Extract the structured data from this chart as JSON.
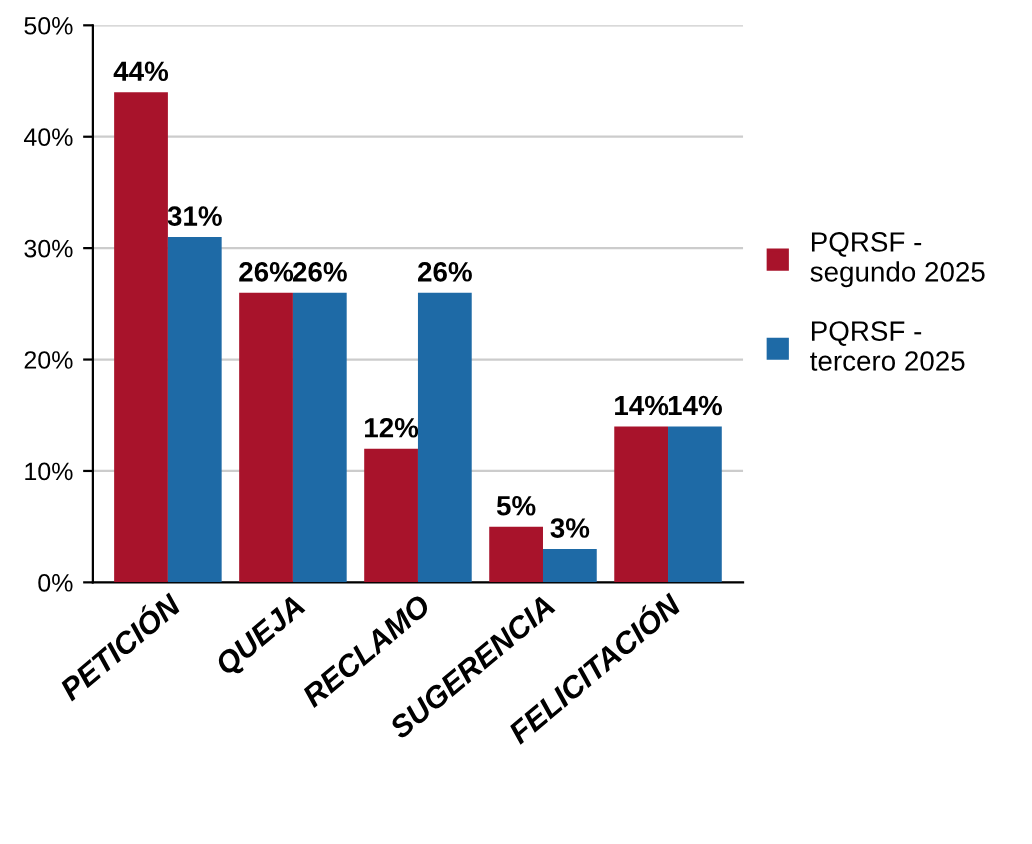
{
  "chart_data": {
    "type": "bar",
    "categories": [
      "PETICIÓN",
      "QUEJA",
      "RECLAMO",
      "SUGERENCIA",
      "FELICITACIÓN"
    ],
    "series": [
      {
        "name": "PQRSF - segundo 2025",
        "color": "#a8132b",
        "values": [
          44,
          26,
          12,
          5,
          14
        ],
        "value_labels": [
          "44%",
          "26%",
          "12%",
          "5%",
          "14%"
        ]
      },
      {
        "name": "PQRSF - tercero 2025",
        "color": "#1e6aa6",
        "values": [
          31,
          26,
          26,
          3,
          14
        ],
        "value_labels": [
          "31%",
          "26%",
          "26%",
          "3%",
          "14%"
        ]
      }
    ],
    "ylim": [
      0,
      50
    ],
    "yticks": [
      {
        "value": 0,
        "label": "0%"
      },
      {
        "value": 10,
        "label": "10%"
      },
      {
        "value": 20,
        "label": "20%"
      },
      {
        "value": 30,
        "label": "30%"
      },
      {
        "value": 40,
        "label": "40%"
      },
      {
        "value": 50,
        "label": "50%"
      }
    ],
    "grid": "y",
    "legend": "right"
  }
}
